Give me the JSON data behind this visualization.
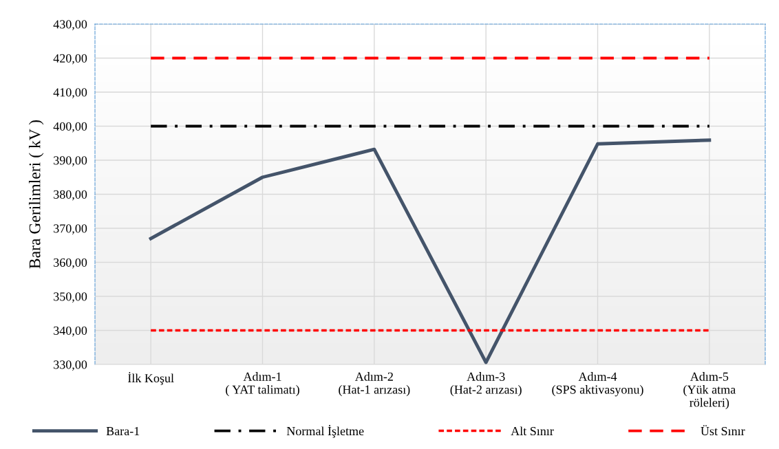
{
  "chart_data": {
    "type": "line",
    "ylabel": "Bara Gerilimleri ( kV )",
    "categories": [
      "İlk Koşul",
      "Adım-1\n( YAT talimatı)",
      "Adım-2\n(Hat-1 arızası)",
      "Adım-3\n(Hat-2 arızası)",
      "Adım-4\n(SPS aktivasyonu)",
      "Adım-5\n(Yük atma\nröleleri)"
    ],
    "series": [
      {
        "name": "Bara-1",
        "color": "#44546a",
        "line_style": "solid",
        "values": [
          367,
          385,
          393.2,
          330.6,
          394.8,
          395.9
        ]
      },
      {
        "name": "Normal İşletme",
        "color": "#000000",
        "line_style": "dashdot",
        "values": [
          400,
          400,
          400,
          400,
          400,
          400
        ]
      },
      {
        "name": "Alt Sınır",
        "color": "#ff0000",
        "line_style": "dotted",
        "values": [
          340,
          340,
          340,
          340,
          340,
          340
        ]
      },
      {
        "name": "Üst Sınır",
        "color": "#ff0000",
        "line_style": "dashed",
        "values": [
          420,
          420,
          420,
          420,
          420,
          420
        ]
      }
    ],
    "ylim": [
      330,
      430
    ],
    "yticks": [
      {
        "value": 330,
        "label": "330,00"
      },
      {
        "value": 340,
        "label": "340,00"
      },
      {
        "value": 350,
        "label": "350,00"
      },
      {
        "value": 360,
        "label": "360,00"
      },
      {
        "value": 370,
        "label": "370,00"
      },
      {
        "value": 380,
        "label": "380,00"
      },
      {
        "value": 390,
        "label": "390,00"
      },
      {
        "value": 400,
        "label": "400,00"
      },
      {
        "value": 410,
        "label": "410,00"
      },
      {
        "value": 420,
        "label": "420,00"
      },
      {
        "value": 430,
        "label": "430,00"
      }
    ],
    "grid": true,
    "legend": "bottom"
  }
}
